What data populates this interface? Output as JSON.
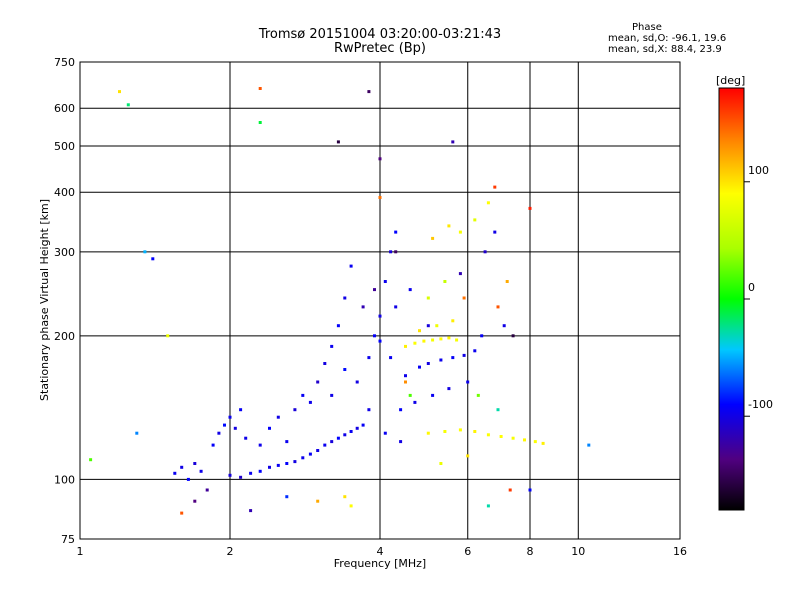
{
  "chart_data": {
    "type": "scatter",
    "title": "Tromsø 20151004 03:20:00-03:21:43",
    "subtitle": "RwPretec (Bp)",
    "xlabel": "Frequency [MHz]",
    "ylabel": "Stationary phase Virtual Height [km]",
    "x_scale": "log",
    "y_scale": "log",
    "xlim": [
      1,
      16
    ],
    "ylim": [
      75,
      750
    ],
    "x_ticks": [
      1,
      2,
      4,
      6,
      8,
      10,
      16
    ],
    "y_ticks": [
      75,
      100,
      200,
      300,
      400,
      500,
      600,
      750
    ],
    "grid": true,
    "colorbar": {
      "label": "[deg]",
      "range": [
        -180,
        180
      ],
      "ticks": [
        -100,
        0,
        100
      ]
    },
    "stats": {
      "header": "Phase",
      "line1": "mean, sd,O: -96.1, 19.6",
      "line2": "mean, sd,X:  88.4, 23.9"
    },
    "series": [
      {
        "points": [
          [
            1.55,
            103,
            -95
          ],
          [
            1.6,
            106,
            -100
          ],
          [
            1.65,
            100,
            -90
          ],
          [
            1.7,
            108,
            -105
          ],
          [
            1.75,
            104,
            -98
          ],
          [
            1.85,
            118,
            -92
          ],
          [
            1.9,
            125,
            -100
          ],
          [
            1.95,
            130,
            -88
          ],
          [
            2.0,
            135,
            -96
          ],
          [
            2.05,
            128,
            -102
          ],
          [
            2.1,
            140,
            -94
          ],
          [
            2.15,
            122,
            -99
          ],
          [
            2.0,
            102,
            -104
          ],
          [
            2.1,
            101,
            -110
          ],
          [
            2.2,
            103,
            -96
          ],
          [
            2.3,
            104,
            -90
          ],
          [
            2.4,
            106,
            -100
          ],
          [
            2.5,
            107,
            -95
          ],
          [
            2.6,
            108,
            -92
          ],
          [
            2.7,
            109,
            -101
          ],
          [
            2.8,
            111,
            -97
          ],
          [
            2.9,
            113,
            -93
          ],
          [
            3.0,
            115,
            -100
          ],
          [
            3.1,
            118,
            -96
          ],
          [
            3.2,
            120,
            -104
          ],
          [
            3.3,
            122,
            -90
          ],
          [
            3.4,
            124,
            -99
          ],
          [
            3.5,
            126,
            -95
          ],
          [
            3.6,
            128,
            -101
          ],
          [
            3.7,
            130,
            -93
          ],
          [
            2.3,
            118,
            -98
          ],
          [
            2.4,
            128,
            -92
          ],
          [
            2.5,
            135,
            -100
          ],
          [
            2.6,
            120,
            -96
          ],
          [
            2.7,
            140,
            -105
          ],
          [
            2.8,
            150,
            -94
          ],
          [
            2.9,
            145,
            -98
          ],
          [
            3.0,
            160,
            -110
          ],
          [
            3.1,
            175,
            -102
          ],
          [
            3.2,
            190,
            -96
          ],
          [
            3.3,
            210,
            -92
          ],
          [
            3.4,
            240,
            -100
          ],
          [
            3.5,
            280,
            -95
          ],
          [
            3.2,
            150,
            -99
          ],
          [
            3.4,
            170,
            -88
          ],
          [
            3.6,
            160,
            -101
          ],
          [
            3.8,
            180,
            -97
          ],
          [
            3.9,
            200,
            -93
          ],
          [
            4.0,
            220,
            -100
          ],
          [
            4.1,
            260,
            -96
          ],
          [
            4.2,
            300,
            -104
          ],
          [
            4.3,
            330,
            -90
          ],
          [
            3.7,
            230,
            -120
          ],
          [
            3.9,
            250,
            -130
          ],
          [
            4.2,
            180,
            -95
          ],
          [
            4.5,
            165,
            -98
          ],
          [
            4.8,
            172,
            -94
          ],
          [
            5.0,
            175,
            -101
          ],
          [
            5.3,
            178,
            -97
          ],
          [
            5.6,
            180,
            -93
          ],
          [
            5.9,
            182,
            -100
          ],
          [
            6.2,
            186,
            -96
          ],
          [
            4.4,
            140,
            -92
          ],
          [
            4.7,
            145,
            -99
          ],
          [
            5.1,
            150,
            -95
          ],
          [
            5.5,
            155,
            -101
          ],
          [
            6.0,
            160,
            -97
          ],
          [
            6.4,
            200,
            -93
          ],
          [
            4.3,
            230,
            -100
          ],
          [
            4.6,
            250,
            -96
          ],
          [
            5.0,
            210,
            -104
          ],
          [
            4.0,
            195,
            -90
          ],
          [
            3.8,
            140,
            -99
          ],
          [
            4.1,
            125,
            -95
          ],
          [
            4.4,
            120,
            -101
          ],
          [
            5.8,
            270,
            -120
          ],
          [
            6.5,
            300,
            -110
          ],
          [
            6.8,
            330,
            -100
          ],
          [
            4.5,
            190,
            95
          ],
          [
            4.7,
            193,
            88
          ],
          [
            4.9,
            195,
            92
          ],
          [
            5.1,
            196,
            85
          ],
          [
            5.3,
            197,
            90
          ],
          [
            5.5,
            198,
            94
          ],
          [
            5.7,
            196,
            86
          ],
          [
            4.8,
            205,
            100
          ],
          [
            5.2,
            210,
            82
          ],
          [
            5.6,
            215,
            96
          ],
          [
            5.0,
            240,
            70
          ],
          [
            5.4,
            260,
            60
          ],
          [
            5.8,
            330,
            85
          ],
          [
            6.2,
            350,
            75
          ],
          [
            6.6,
            380,
            90
          ],
          [
            5.1,
            320,
            110
          ],
          [
            5.5,
            340,
            98
          ],
          [
            5.0,
            125,
            92
          ],
          [
            5.4,
            126,
            86
          ],
          [
            5.8,
            127,
            90
          ],
          [
            6.2,
            126,
            94
          ],
          [
            6.6,
            124,
            88
          ],
          [
            7.0,
            123,
            90
          ],
          [
            7.4,
            122,
            86
          ],
          [
            7.8,
            121,
            92
          ],
          [
            8.2,
            120,
            88
          ],
          [
            8.5,
            119,
            95
          ],
          [
            5.3,
            108,
            80
          ],
          [
            6.0,
            112,
            100
          ],
          [
            6.3,
            150,
            30
          ],
          [
            4.6,
            150,
            20
          ],
          [
            5.9,
            240,
            140
          ],
          [
            6.9,
            230,
            150
          ],
          [
            4.5,
            160,
            130
          ],
          [
            7.2,
            260,
            120
          ],
          [
            4.0,
            390,
            140
          ],
          [
            6.8,
            410,
            160
          ],
          [
            2.3,
            660,
            150
          ],
          [
            8.0,
            370,
            170
          ],
          [
            2.3,
            560,
            -10
          ],
          [
            1.25,
            610,
            -20
          ],
          [
            1.2,
            650,
            100
          ],
          [
            1.5,
            200,
            80
          ],
          [
            1.05,
            110,
            20
          ],
          [
            1.3,
            125,
            -60
          ],
          [
            1.7,
            90,
            -140
          ],
          [
            1.6,
            85,
            150
          ],
          [
            3.0,
            90,
            120
          ],
          [
            3.4,
            92,
            100
          ],
          [
            4.3,
            300,
            -150
          ],
          [
            3.3,
            510,
            -160
          ],
          [
            5.6,
            510,
            -120
          ],
          [
            3.8,
            650,
            -150
          ],
          [
            4.0,
            470,
            -140
          ],
          [
            7.3,
            95,
            160
          ],
          [
            6.6,
            88,
            -30
          ],
          [
            8.0,
            95,
            -90
          ],
          [
            1.8,
            95,
            -130
          ],
          [
            2.2,
            86,
            -120
          ],
          [
            2.6,
            92,
            -80
          ],
          [
            3.5,
            88,
            90
          ],
          [
            10.5,
            118,
            -60
          ],
          [
            1.35,
            300,
            -50
          ],
          [
            1.4,
            290,
            -90
          ],
          [
            7.1,
            210,
            -100
          ],
          [
            7.4,
            200,
            -160
          ],
          [
            6.9,
            140,
            -30
          ]
        ]
      }
    ]
  }
}
